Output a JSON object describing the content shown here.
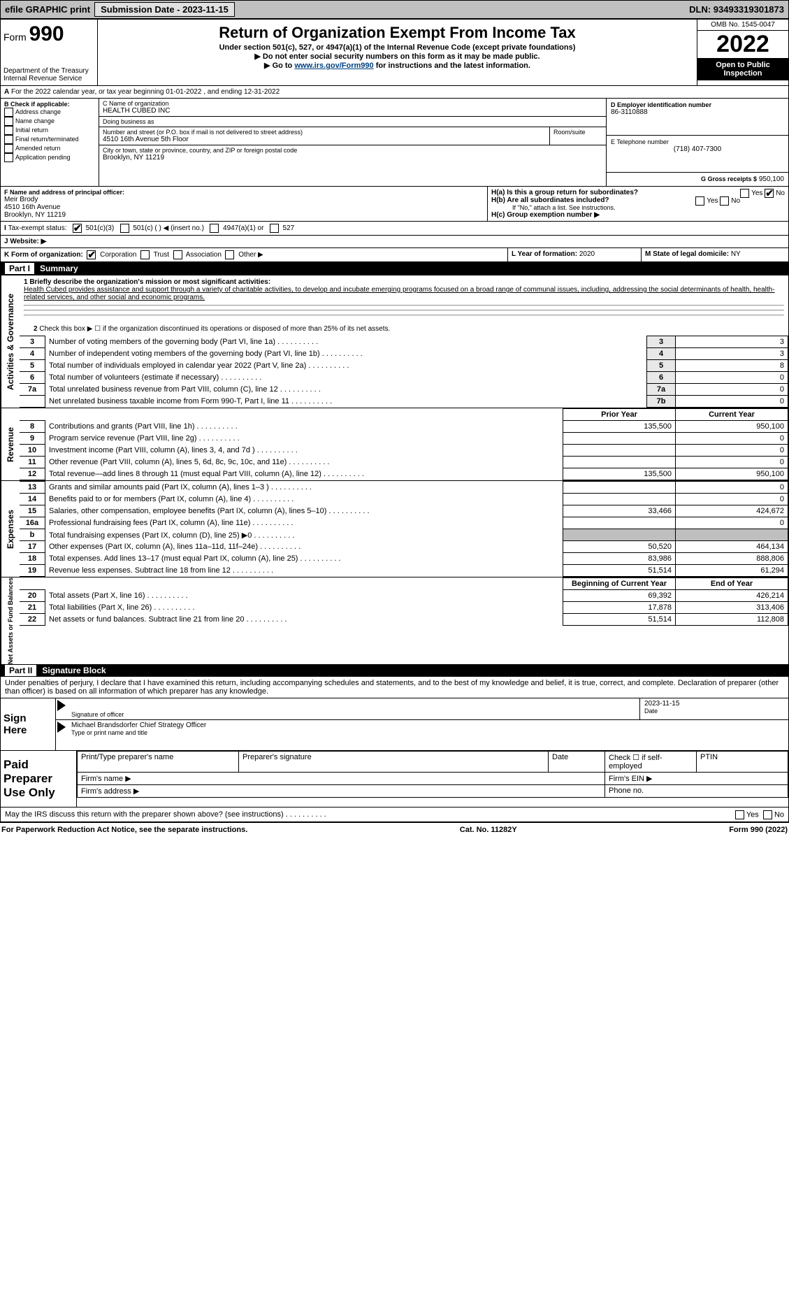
{
  "topbar": {
    "efile": "efile GRAPHIC print",
    "submission_label": "Submission Date - 2023-11-15",
    "dln_label": "DLN: 93493319301873"
  },
  "header": {
    "form_label": "Form",
    "form_num": "990",
    "dept": "Department of the Treasury",
    "irs": "Internal Revenue Service",
    "title": "Return of Organization Exempt From Income Tax",
    "sub": "Under section 501(c), 527, or 4947(a)(1) of the Internal Revenue Code (except private foundations)",
    "sub2": "▶ Do not enter social security numbers on this form as it may be made public.",
    "sub3_pre": "▶ Go to ",
    "sub3_link": "www.irs.gov/Form990",
    "sub3_post": " for instructions and the latest information.",
    "omb": "OMB No. 1545-0047",
    "year": "2022",
    "open": "Open to Public Inspection"
  },
  "sectionA": {
    "line": "For the 2022 calendar year, or tax year beginning 01-01-2022    , and ending 12-31-2022"
  },
  "sectionB": {
    "label": "B Check if applicable:",
    "opts": [
      "Address change",
      "Name change",
      "Initial return",
      "Final return/terminated",
      "Amended return",
      "Application pending"
    ]
  },
  "sectionC": {
    "name_label": "C Name of organization",
    "name": "HEALTH CUBED INC",
    "dba_label": "Doing business as",
    "dba": "",
    "addr_label": "Number and street (or P.O. box if mail is not delivered to street address)",
    "room_label": "Room/suite",
    "addr": "4510 16th Avenue 5th Floor",
    "city_label": "City or town, state or province, country, and ZIP or foreign postal code",
    "city": "Brooklyn, NY  11219"
  },
  "sectionD": {
    "label": "D Employer identification number",
    "val": "86-3110888"
  },
  "sectionE": {
    "label": "E Telephone number",
    "val": "(718) 407-7300"
  },
  "sectionG": {
    "label": "G Gross receipts $",
    "val": "950,100"
  },
  "sectionF": {
    "label": "F  Name and address of principal officer:",
    "name": "Meir Brody",
    "addr1": "4510 16th Avenue",
    "addr2": "Brooklyn, NY  11219"
  },
  "sectionH": {
    "a": "H(a)  Is this a group return for subordinates?",
    "b": "H(b)  Are all subordinates included?",
    "b2": "If \"No,\" attach a list. See instructions.",
    "c": "H(c)  Group exemption number ▶",
    "yes": "Yes",
    "no": "No"
  },
  "sectionI": {
    "label": "Tax-exempt status:",
    "o1": "501(c)(3)",
    "o2": "501(c) (  ) ◀ (insert no.)",
    "o3": "4947(a)(1) or",
    "o4": "527"
  },
  "sectionJ": {
    "label": "Website: ▶"
  },
  "sectionK": {
    "label": "K Form of organization:",
    "o1": "Corporation",
    "o2": "Trust",
    "o3": "Association",
    "o4": "Other ▶"
  },
  "sectionL": {
    "label": "L Year of formation:",
    "val": "2020"
  },
  "sectionM": {
    "label": "M State of legal domicile:",
    "val": "NY"
  },
  "part1": {
    "hdr_part": "Part I",
    "hdr_title": "Summary",
    "q1": "1  Briefly describe the organization's mission or most significant activities:",
    "mission": "Health Cubed provides assistance and support through a variety of charitable activities, to develop and incubate emerging programs focused on a broad range of communal issues, including, addressing the social determinants of health, health-related services, and other social and economic programs.",
    "q2": "Check this box ▶ ☐  if the organization discontinued its operations or disposed of more than 25% of its net assets.",
    "lines_gov": [
      {
        "n": "3",
        "t": "Number of voting members of the governing body (Part VI, line 1a)",
        "box": "3",
        "v": "3"
      },
      {
        "n": "4",
        "t": "Number of independent voting members of the governing body (Part VI, line 1b)",
        "box": "4",
        "v": "3"
      },
      {
        "n": "5",
        "t": "Total number of individuals employed in calendar year 2022 (Part V, line 2a)",
        "box": "5",
        "v": "8"
      },
      {
        "n": "6",
        "t": "Total number of volunteers (estimate if necessary)",
        "box": "6",
        "v": "0"
      },
      {
        "n": "7a",
        "t": "Total unrelated business revenue from Part VIII, column (C), line 12",
        "box": "7a",
        "v": "0"
      },
      {
        "n": "",
        "t": "Net unrelated business taxable income from Form 990-T, Part I, line 11",
        "box": "7b",
        "v": "0"
      }
    ],
    "col_prior": "Prior Year",
    "col_curr": "Current Year",
    "lines_rev": [
      {
        "n": "8",
        "t": "Contributions and grants (Part VIII, line 1h)",
        "p": "135,500",
        "c": "950,100"
      },
      {
        "n": "9",
        "t": "Program service revenue (Part VIII, line 2g)",
        "p": "",
        "c": "0"
      },
      {
        "n": "10",
        "t": "Investment income (Part VIII, column (A), lines 3, 4, and 7d )",
        "p": "",
        "c": "0"
      },
      {
        "n": "11",
        "t": "Other revenue (Part VIII, column (A), lines 5, 6d, 8c, 9c, 10c, and 11e)",
        "p": "",
        "c": "0"
      },
      {
        "n": "12",
        "t": "Total revenue—add lines 8 through 11 (must equal Part VIII, column (A), line 12)",
        "p": "135,500",
        "c": "950,100"
      }
    ],
    "lines_exp": [
      {
        "n": "13",
        "t": "Grants and similar amounts paid (Part IX, column (A), lines 1–3 )",
        "p": "",
        "c": "0"
      },
      {
        "n": "14",
        "t": "Benefits paid to or for members (Part IX, column (A), line 4)",
        "p": "",
        "c": "0"
      },
      {
        "n": "15",
        "t": "Salaries, other compensation, employee benefits (Part IX, column (A), lines 5–10)",
        "p": "33,466",
        "c": "424,672"
      },
      {
        "n": "16a",
        "t": "Professional fundraising fees (Part IX, column (A), line 11e)",
        "p": "",
        "c": "0"
      },
      {
        "n": "b",
        "t": "Total fundraising expenses (Part IX, column (D), line 25) ▶0",
        "p": "SHADE",
        "c": "SHADE"
      },
      {
        "n": "17",
        "t": "Other expenses (Part IX, column (A), lines 11a–11d, 11f–24e)",
        "p": "50,520",
        "c": "464,134"
      },
      {
        "n": "18",
        "t": "Total expenses. Add lines 13–17 (must equal Part IX, column (A), line 25)",
        "p": "83,986",
        "c": "888,806"
      },
      {
        "n": "19",
        "t": "Revenue less expenses. Subtract line 18 from line 12",
        "p": "51,514",
        "c": "61,294"
      }
    ],
    "col_beg": "Beginning of Current Year",
    "col_end": "End of Year",
    "lines_na": [
      {
        "n": "20",
        "t": "Total assets (Part X, line 16)",
        "p": "69,392",
        "c": "426,214"
      },
      {
        "n": "21",
        "t": "Total liabilities (Part X, line 26)",
        "p": "17,878",
        "c": "313,406"
      },
      {
        "n": "22",
        "t": "Net assets or fund balances. Subtract line 21 from line 20",
        "p": "51,514",
        "c": "112,808"
      }
    ],
    "vlabel_gov": "Activities & Governance",
    "vlabel_rev": "Revenue",
    "vlabel_exp": "Expenses",
    "vlabel_na": "Net Assets or Fund Balances"
  },
  "part2": {
    "hdr_part": "Part II",
    "hdr_title": "Signature Block",
    "decl": "Under penalties of perjury, I declare that I have examined this return, including accompanying schedules and statements, and to the best of my knowledge and belief, it is true, correct, and complete. Declaration of preparer (other than officer) is based on all information of which preparer has any knowledge.",
    "sign_here": "Sign Here",
    "sig_officer": "Signature of officer",
    "date": "Date",
    "date_val": "2023-11-15",
    "typed": "Michael Brandsdorfer  Chief Strategy Officer",
    "typed_lbl": "Type or print name and title",
    "paid": "Paid Preparer Use Only",
    "p1": "Print/Type preparer's name",
    "p2": "Preparer's signature",
    "p3": "Date",
    "p4": "Check ☐ if self-employed",
    "p5": "PTIN",
    "f1": "Firm's name  ▶",
    "f2": "Firm's EIN ▶",
    "f3": "Firm's address ▶",
    "f4": "Phone no.",
    "may": "May the IRS discuss this return with the preparer shown above? (see instructions)",
    "yes": "Yes",
    "no": "No"
  },
  "footer": {
    "left": "For Paperwork Reduction Act Notice, see the separate instructions.",
    "mid": "Cat. No. 11282Y",
    "right": "Form 990 (2022)"
  }
}
